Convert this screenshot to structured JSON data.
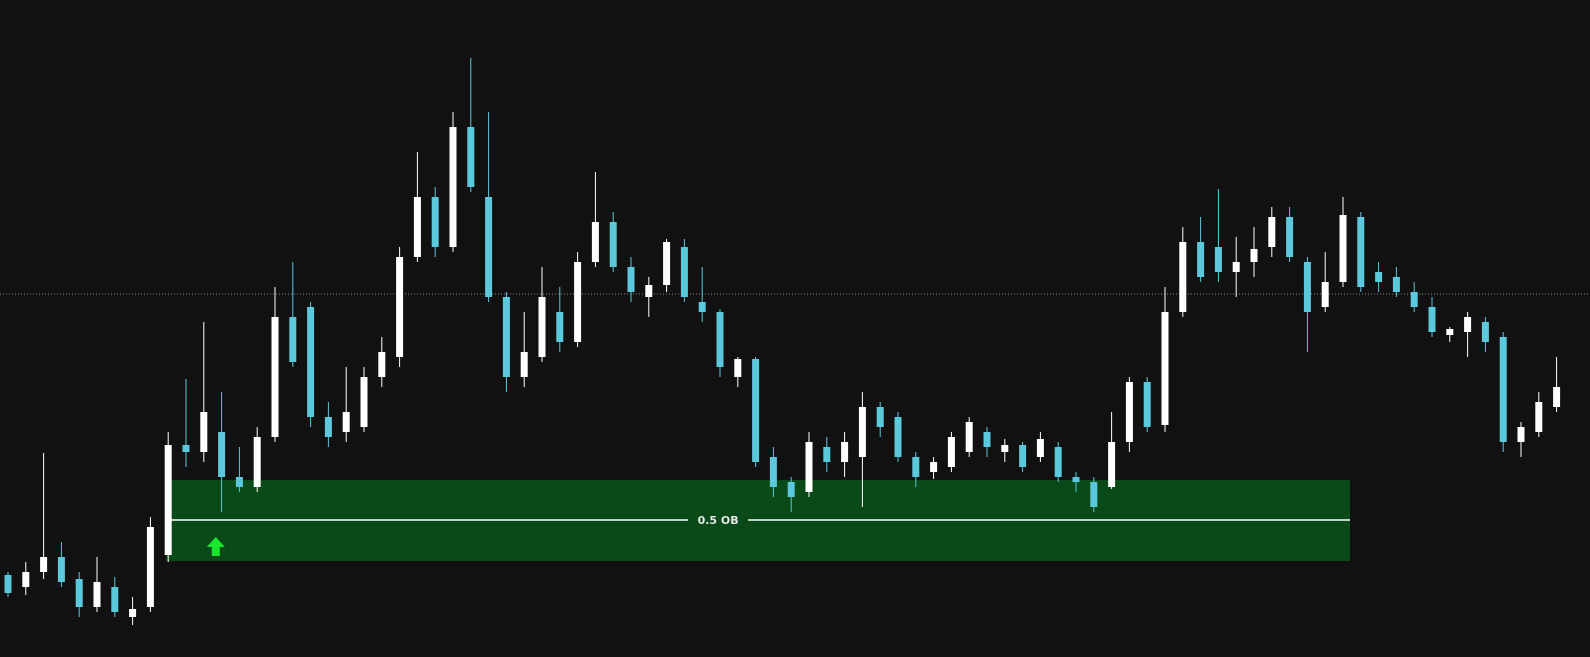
{
  "chart_data": {
    "type": "candlestick",
    "up_color": "#ffffff",
    "down_color": "#5bc8dc",
    "ylim": [
      0,
      657
    ],
    "price_line": 363,
    "candles": [
      [
        82,
        85,
        60,
        64
      ],
      [
        70,
        95,
        62,
        85
      ],
      [
        85,
        204,
        78,
        100
      ],
      [
        100,
        115,
        70,
        75
      ],
      [
        78,
        85,
        40,
        50
      ],
      [
        50,
        100,
        45,
        75
      ],
      [
        70,
        80,
        40,
        45
      ],
      [
        40,
        60,
        32,
        48
      ],
      [
        50,
        140,
        45,
        130
      ],
      [
        102,
        225,
        95,
        212
      ],
      [
        212,
        278,
        190,
        205
      ],
      [
        205,
        335,
        195,
        245
      ],
      [
        225,
        265,
        145,
        180
      ],
      [
        180,
        210,
        165,
        170
      ],
      [
        170,
        230,
        165,
        220
      ],
      [
        220,
        370,
        215,
        340
      ],
      [
        340,
        395,
        290,
        295
      ],
      [
        350,
        355,
        230,
        240
      ],
      [
        240,
        255,
        210,
        220
      ],
      [
        225,
        290,
        215,
        245
      ],
      [
        230,
        290,
        225,
        280
      ],
      [
        280,
        320,
        270,
        305
      ],
      [
        300,
        410,
        290,
        400
      ],
      [
        400,
        505,
        395,
        460
      ],
      [
        460,
        470,
        400,
        410
      ],
      [
        410,
        545,
        405,
        530
      ],
      [
        530,
        599,
        465,
        470
      ],
      [
        460,
        545,
        355,
        360
      ],
      [
        360,
        365,
        265,
        280
      ],
      [
        280,
        345,
        270,
        305
      ],
      [
        300,
        390,
        295,
        360
      ],
      [
        345,
        370,
        305,
        315
      ],
      [
        315,
        405,
        310,
        395
      ],
      [
        395,
        485,
        390,
        435
      ],
      [
        435,
        445,
        385,
        390
      ],
      [
        390,
        400,
        355,
        365
      ],
      [
        360,
        380,
        340,
        372
      ],
      [
        372,
        418,
        365,
        415
      ],
      [
        410,
        418,
        355,
        360
      ],
      [
        355,
        390,
        335,
        345
      ],
      [
        345,
        348,
        280,
        290
      ],
      [
        280,
        300,
        270,
        298
      ],
      [
        298,
        300,
        190,
        195
      ],
      [
        200,
        210,
        160,
        170
      ],
      [
        175,
        180,
        145,
        160
      ],
      [
        165,
        225,
        160,
        215
      ],
      [
        210,
        220,
        185,
        195
      ],
      [
        195,
        225,
        180,
        215
      ],
      [
        200,
        265,
        150,
        250
      ],
      [
        250,
        255,
        220,
        230
      ],
      [
        240,
        245,
        195,
        200
      ],
      [
        200,
        205,
        170,
        180
      ],
      [
        185,
        200,
        178,
        195
      ],
      [
        190,
        225,
        185,
        220
      ],
      [
        205,
        240,
        200,
        235
      ],
      [
        225,
        230,
        200,
        210
      ],
      [
        205,
        218,
        195,
        212
      ],
      [
        212,
        215,
        185,
        190
      ],
      [
        200,
        225,
        195,
        218
      ],
      [
        210,
        215,
        175,
        180
      ],
      [
        180,
        185,
        165,
        175
      ],
      [
        175,
        180,
        145,
        150
      ],
      [
        170,
        245,
        168,
        215
      ],
      [
        215,
        280,
        205,
        275
      ],
      [
        275,
        280,
        225,
        230
      ],
      [
        232,
        370,
        225,
        345
      ],
      [
        345,
        430,
        340,
        415
      ],
      [
        415,
        440,
        375,
        380
      ],
      [
        410,
        468,
        375,
        385
      ],
      [
        385,
        420,
        360,
        395
      ],
      [
        395,
        430,
        380,
        408
      ],
      [
        410,
        450,
        400,
        440
      ],
      [
        440,
        450,
        395,
        400
      ],
      [
        395,
        400,
        305,
        345
      ],
      [
        350,
        405,
        345,
        375
      ],
      [
        375,
        460,
        370,
        442
      ],
      [
        440,
        445,
        365,
        370
      ],
      [
        385,
        395,
        365,
        375
      ],
      [
        380,
        390,
        360,
        365
      ],
      [
        365,
        375,
        345,
        350
      ],
      [
        350,
        360,
        320,
        325
      ],
      [
        322,
        330,
        315,
        328
      ],
      [
        325,
        345,
        300,
        340
      ],
      [
        335,
        340,
        305,
        315
      ],
      [
        320,
        325,
        205,
        215
      ],
      [
        215,
        235,
        200,
        230
      ],
      [
        225,
        265,
        220,
        255
      ],
      [
        250,
        300,
        245,
        270
      ]
    ],
    "zone": {
      "top": 177,
      "bottom": 96,
      "mid": 137,
      "start": 9,
      "end": 75,
      "label": "0.5 OB",
      "color": "#0a4a18"
    },
    "signal": {
      "index": 11,
      "value": 110,
      "color": "#19e62e"
    }
  }
}
